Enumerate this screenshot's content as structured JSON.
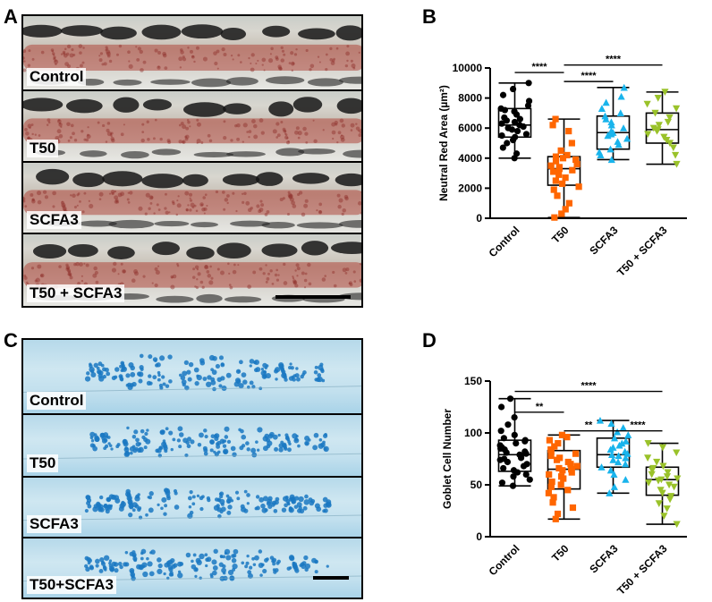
{
  "panels": {
    "a": {
      "letter": "A",
      "labels": [
        "Control",
        "T50",
        "SCFA3",
        "T50 + SCFA3"
      ]
    },
    "b": {
      "letter": "B"
    },
    "c": {
      "letter": "C",
      "labels": [
        "Control",
        "T50",
        "SCFA3",
        "T50+SCFA3"
      ]
    },
    "d": {
      "letter": "D"
    }
  },
  "colors": {
    "control": "#000000",
    "t50": "#ff6600",
    "scfa3": "#19b4ec",
    "t50_scfa3": "#9ac22a",
    "stain_red": "#b0483e",
    "stain_blue": "#1a78c2"
  },
  "chart_data": [
    {
      "id": "B",
      "type": "box-scatter",
      "ylabel": "Neutral Red Area (µm²)",
      "ylim": [
        0,
        10000
      ],
      "yticks": [
        0,
        2000,
        4000,
        6000,
        8000,
        10000
      ],
      "categories": [
        "Control",
        "T50",
        "SCFA3",
        "T50 + SCFA3"
      ],
      "markers": [
        "circle",
        "square",
        "triangle-up",
        "triangle-down"
      ],
      "series": [
        {
          "name": "Control",
          "min": 4000,
          "q1": 5400,
          "median": 6200,
          "q3": 7300,
          "max": 9000,
          "points": [
            4000,
            4300,
            4700,
            5000,
            5200,
            5400,
            5500,
            5600,
            5800,
            5900,
            6000,
            6100,
            6200,
            6300,
            6400,
            6500,
            6600,
            6700,
            6900,
            7100,
            7200,
            7300,
            7500,
            7800,
            8200,
            8600,
            9000
          ]
        },
        {
          "name": "T50",
          "min": 50,
          "q1": 2200,
          "median": 3300,
          "q3": 4100,
          "max": 6600,
          "points": [
            50,
            300,
            600,
            1000,
            1500,
            1900,
            2100,
            2300,
            2500,
            2700,
            2900,
            3100,
            3200,
            3300,
            3400,
            3500,
            3600,
            3800,
            3900,
            4000,
            4100,
            4200,
            4500,
            5000,
            5800,
            6200,
            6600
          ]
        },
        {
          "name": "SCFA3",
          "min": 3900,
          "q1": 4600,
          "median": 5700,
          "q3": 6800,
          "max": 8700,
          "points": [
            3900,
            4200,
            4400,
            4600,
            4900,
            5100,
            5300,
            5500,
            5600,
            5700,
            5800,
            6000,
            6200,
            6400,
            6600,
            6800,
            7000,
            7300,
            7700,
            8100,
            8700
          ]
        },
        {
          "name": "T50 + SCFA3",
          "min": 3600,
          "q1": 5000,
          "median": 5900,
          "q3": 7000,
          "max": 8400,
          "points": [
            3600,
            4200,
            4700,
            5000,
            5200,
            5400,
            5600,
            5800,
            5900,
            6000,
            6200,
            6400,
            6700,
            7000,
            7300,
            7600,
            8000,
            8400
          ]
        }
      ],
      "significance": [
        {
          "from": 0,
          "to": 1,
          "label": "****",
          "y": 9700
        },
        {
          "from": 1,
          "to": 2,
          "label": "****",
          "y": 9100
        },
        {
          "from": 1,
          "to": 3,
          "label": "****",
          "y": 10200
        }
      ]
    },
    {
      "id": "D",
      "type": "box-scatter",
      "ylabel": "Goblet Cell Number",
      "ylim": [
        0,
        150
      ],
      "yticks": [
        0,
        50,
        100,
        150
      ],
      "categories": [
        "Control",
        "T50",
        "SCFA3",
        "T50 + SCFA3"
      ],
      "markers": [
        "circle",
        "square",
        "triangle-up",
        "triangle-down"
      ],
      "series": [
        {
          "name": "Control",
          "min": 49,
          "q1": 63,
          "median": 79,
          "q3": 93,
          "max": 133,
          "points": [
            49,
            52,
            55,
            58,
            60,
            62,
            64,
            66,
            68,
            70,
            72,
            74,
            75,
            76,
            78,
            79,
            80,
            81,
            82,
            84,
            85,
            86,
            88,
            90,
            92,
            93,
            95,
            98,
            102,
            108,
            115,
            125,
            133
          ]
        },
        {
          "name": "T50",
          "min": 17,
          "q1": 46,
          "median": 65,
          "q3": 83,
          "max": 98,
          "points": [
            17,
            22,
            28,
            33,
            38,
            42,
            45,
            48,
            50,
            53,
            56,
            58,
            60,
            62,
            64,
            65,
            66,
            68,
            70,
            72,
            74,
            76,
            78,
            80,
            82,
            84,
            87,
            90,
            93,
            96,
            98
          ]
        },
        {
          "name": "SCFA3",
          "min": 42,
          "q1": 67,
          "median": 79,
          "q3": 95,
          "max": 112,
          "points": [
            42,
            48,
            55,
            60,
            64,
            67,
            70,
            72,
            74,
            76,
            78,
            79,
            80,
            82,
            84,
            86,
            88,
            90,
            92,
            95,
            98,
            101,
            105,
            109,
            112
          ]
        },
        {
          "name": "T50 + SCFA3",
          "min": 12,
          "q1": 40,
          "median": 55,
          "q3": 67,
          "max": 90,
          "points": [
            12,
            20,
            27,
            32,
            36,
            39,
            42,
            45,
            48,
            50,
            52,
            54,
            55,
            56,
            58,
            60,
            62,
            64,
            66,
            68,
            72,
            76,
            81,
            86,
            90
          ]
        }
      ],
      "significance": [
        {
          "from": 0,
          "to": 1,
          "label": "**",
          "y": 120
        },
        {
          "from": 1,
          "to": 2,
          "label": "**",
          "y": 102
        },
        {
          "from": 2,
          "to": 3,
          "label": "****",
          "y": 102
        },
        {
          "from": 0,
          "to": 3,
          "label": "****",
          "y": 140
        }
      ]
    }
  ]
}
